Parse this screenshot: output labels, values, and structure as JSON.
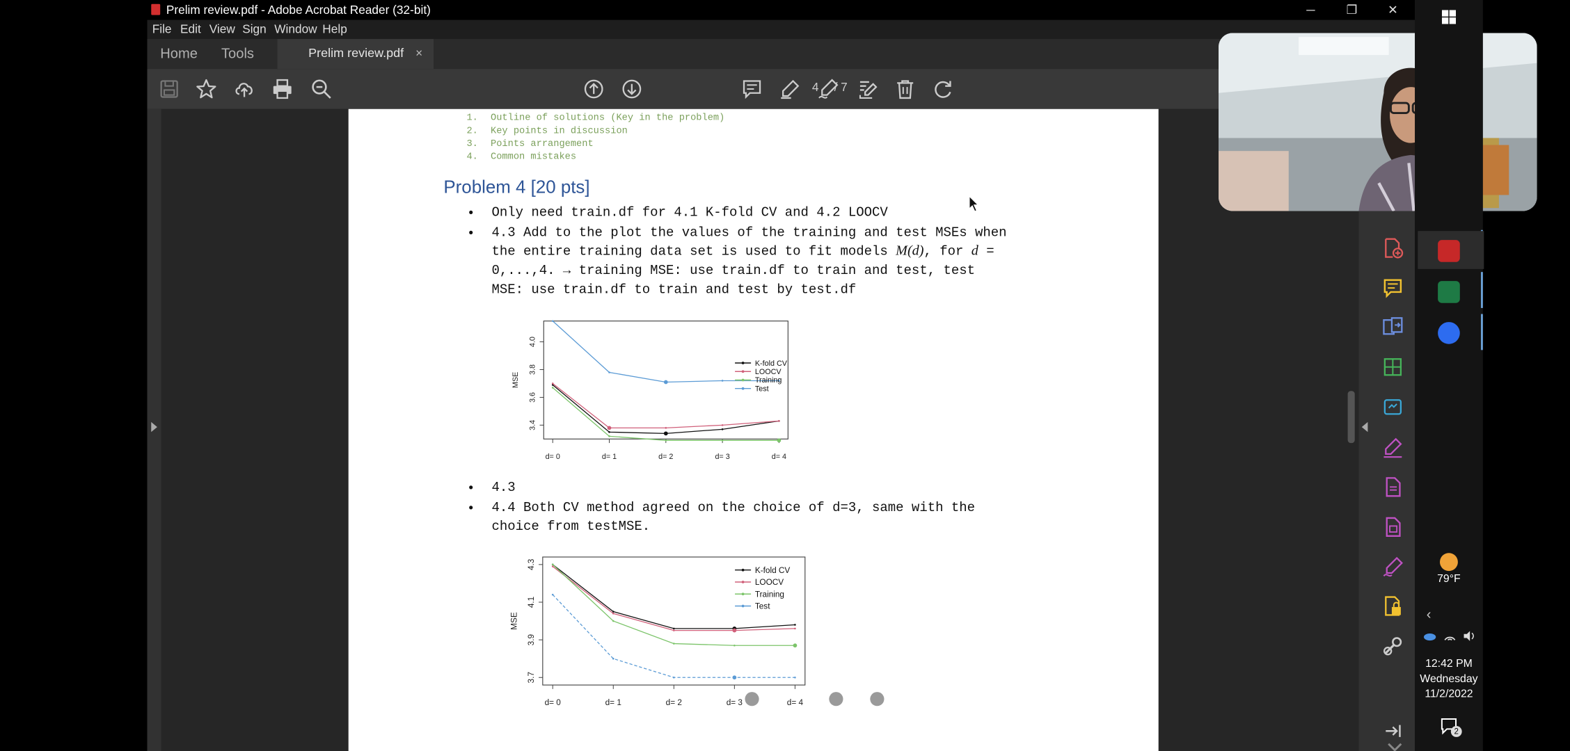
{
  "window": {
    "title": "Prelim review.pdf - Adobe Acrobat Reader (32-bit)",
    "controls": {
      "minimize": "─",
      "maximize": "❐",
      "close": "✕"
    }
  },
  "menu": [
    "File",
    "Edit",
    "View",
    "Sign",
    "Window",
    "Help"
  ],
  "tabs": {
    "home": "Home",
    "tools": "Tools",
    "document": "Prelim review.pdf",
    "close": "×"
  },
  "toolbar": {
    "icons": [
      "save-icon",
      "star-icon",
      "upload-icon",
      "print-icon",
      "zoom-out-icon",
      "page-up-icon",
      "page-down-icon",
      "comment-icon",
      "highlight-icon",
      "sign-icon",
      "edit-icon",
      "delete-icon",
      "rotate-icon"
    ],
    "page_current": "4",
    "page_total": "/ 7"
  },
  "page": {
    "outline": [
      {
        "n": "1.",
        "text": "Outline of solutions (Key in the problem)"
      },
      {
        "n": "2.",
        "text": "Key points in discussion"
      },
      {
        "n": "3.",
        "text": "Points arrangement"
      },
      {
        "n": "4.",
        "text": "Common mistakes"
      }
    ],
    "problem_title": "Problem 4 [20 pts]",
    "bullet1": "Only need train.df for 4.1 K-fold CV and 4.2 LOOCV",
    "bullet2_line1": "4.3 Add to the plot the values of the training and test MSEs when",
    "bullet2_line2a": "the entire training data set is used to fit models ",
    "bullet2_math": "M(d)",
    "bullet2_line2b": ", for ",
    "bullet2_var": "d",
    "bullet2_line2c": " =",
    "bullet2_line3": "0,...,4. → training MSE: use train.df to train and test, test",
    "bullet2_line4": "MSE: use train.df to train and test by test.df",
    "bullet3": "4.3",
    "bullet4_line1": "4.4 Both CV method agreed on the choice of d=3, same with the",
    "bullet4_line2": "choice from testMSE."
  },
  "colors": {
    "kfold": "#111111",
    "loocv": "#d0607a",
    "training": "#7cc46a",
    "test": "#5b9bd5",
    "title_blue": "#2e5597",
    "outline_green": "#7ba05b"
  },
  "chart_data": [
    {
      "type": "line",
      "ylabel": "MSE",
      "xlabel": "",
      "categories": [
        "d= 0",
        "d= 1",
        "d= 2",
        "d= 3",
        "d= 4"
      ],
      "yticks": [
        "3.4",
        "3.6",
        "3.8",
        "4.0"
      ],
      "ylim": [
        3.3,
        4.15
      ],
      "legend_position": "right",
      "series": [
        {
          "name": "K-fold CV",
          "values": [
            3.69,
            3.35,
            3.34,
            3.37,
            3.43
          ]
        },
        {
          "name": "LOOCV",
          "values": [
            3.7,
            3.38,
            3.38,
            3.4,
            3.43
          ]
        },
        {
          "name": "Training",
          "values": [
            3.67,
            3.32,
            3.29,
            3.29,
            3.29
          ]
        },
        {
          "name": "Test",
          "values": [
            4.15,
            3.78,
            3.71,
            3.72,
            3.72
          ]
        }
      ]
    },
    {
      "type": "line",
      "ylabel": "MSE",
      "xlabel": "",
      "categories": [
        "d= 0",
        "d= 1",
        "d= 2",
        "d= 3",
        "d= 4"
      ],
      "yticks": [
        "3.7",
        "3.9",
        "4.1",
        "4.3"
      ],
      "ylim": [
        3.66,
        4.34
      ],
      "legend_position": "top-right",
      "series": [
        {
          "name": "K-fold CV",
          "values": [
            4.3,
            4.05,
            3.96,
            3.96,
            3.98
          ]
        },
        {
          "name": "LOOCV",
          "values": [
            4.29,
            4.04,
            3.95,
            3.95,
            3.96
          ]
        },
        {
          "name": "Training",
          "values": [
            4.3,
            4.0,
            3.88,
            3.87,
            3.87
          ]
        },
        {
          "name": "Test",
          "values": [
            4.14,
            3.8,
            3.7,
            3.7,
            3.7
          ]
        }
      ]
    }
  ],
  "taskbar": {
    "weather_temp": "79°F",
    "time": "12:42 PM",
    "day": "Wednesday",
    "date": "11/2/2022",
    "notifications": "2"
  }
}
